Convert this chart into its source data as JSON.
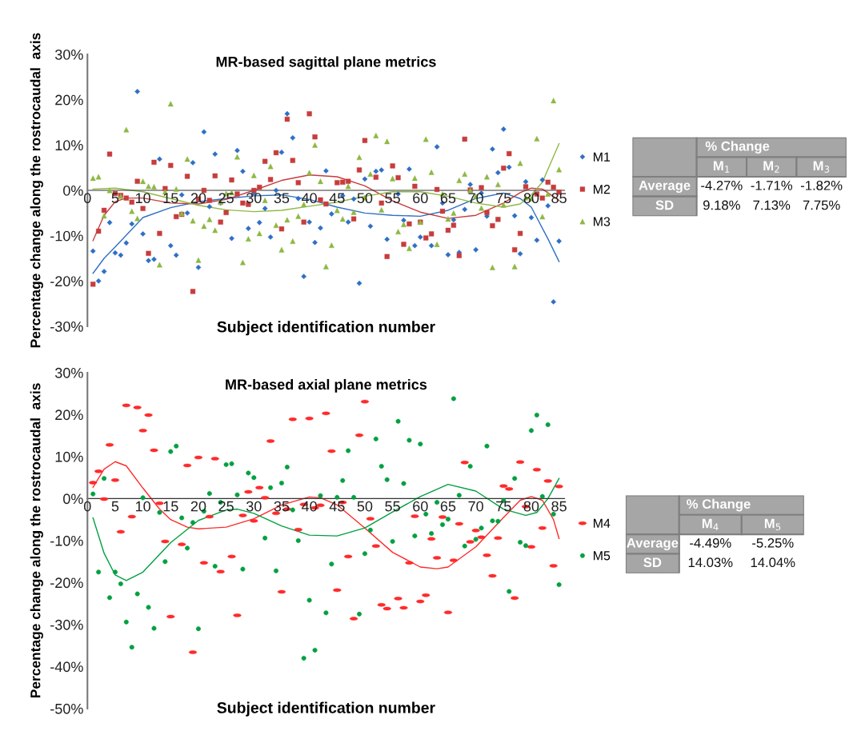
{
  "chart_data": [
    {
      "type": "scatter",
      "title": "MR-based sagittal plane metrics",
      "xlabel": "Subject identification number",
      "ylabel": "Percentage change along the rostrocaudal  axis",
      "xlim": [
        0,
        86
      ],
      "xticks": [
        0,
        5,
        10,
        15,
        20,
        25,
        30,
        35,
        40,
        45,
        50,
        55,
        60,
        65,
        70,
        75,
        80,
        85
      ],
      "ylim": [
        -30,
        30
      ],
      "yticks": [
        {
          "value": -30,
          "label": "-30%"
        },
        {
          "value": -20,
          "label": "-20%"
        },
        {
          "value": -10,
          "label": "-10%"
        },
        {
          "value": 0,
          "label": "0%"
        },
        {
          "value": 10,
          "label": "10%"
        },
        {
          "value": 20,
          "label": "20%"
        },
        {
          "value": 30,
          "label": "30%"
        }
      ],
      "grid": false,
      "legend": "right",
      "series": [
        {
          "name": "M1",
          "color": "#2e6fc4",
          "marker": "diamond",
          "x": [
            1,
            2,
            3,
            4,
            5,
            6,
            7,
            8,
            9,
            10,
            11,
            12,
            13,
            15,
            16,
            17,
            18,
            19,
            20,
            21,
            22,
            23,
            24,
            26,
            27,
            28,
            29,
            30,
            31,
            32,
            33,
            34,
            35,
            36,
            37,
            38,
            39,
            40,
            41,
            42,
            43,
            44,
            46,
            47,
            48,
            49,
            50,
            51,
            52,
            53,
            54,
            56,
            57,
            58,
            59,
            60,
            62,
            63,
            64,
            65,
            66,
            67,
            68,
            69,
            70,
            71,
            72,
            73,
            74,
            75,
            76,
            77,
            78,
            79,
            80,
            81,
            82,
            83,
            84,
            85
          ],
          "values": [
            -13.4,
            -20,
            -17.9,
            -7.1,
            -13.8,
            -14.3,
            -11.6,
            -7.4,
            21.8,
            -9.6,
            -15.5,
            -15.2,
            6.9,
            -12.2,
            -14.3,
            -1,
            -5,
            6.1,
            -17,
            12.9,
            -3.6,
            8,
            -2.8,
            -10.6,
            8.8,
            4.2,
            -8.4,
            -0.6,
            -7.1,
            -4,
            -10.3,
            0,
            8.4,
            16.9,
            11.6,
            -1.8,
            -19,
            -7,
            -11.5,
            -8.3,
            4.3,
            -5.2,
            -1.2,
            -7,
            -1.9,
            -20.5,
            2.5,
            -7.9,
            4.2,
            4.5,
            -10.8,
            -0.8,
            -6.6,
            4.7,
            -12.2,
            -10.3,
            -12.2,
            9.6,
            -2.8,
            -14.2,
            -6.5,
            -13.7,
            -4.2,
            1.3,
            -13.1,
            -0.6,
            -5.7,
            9.1,
            3.9,
            13.5,
            5.1,
            -5.6,
            -14,
            1.9,
            -6,
            -11,
            2.3,
            -3.4,
            -24.6,
            -11.2
          ]
        },
        {
          "name": "M2",
          "color": "#c83c3c",
          "marker": "square",
          "x": [
            1,
            2,
            3,
            4,
            5,
            6,
            7,
            8,
            9,
            10,
            11,
            12,
            13,
            14,
            15,
            16,
            17,
            18,
            19,
            20,
            21,
            22,
            23,
            24,
            25,
            26,
            27,
            28,
            29,
            30,
            31,
            32,
            33,
            34,
            35,
            36,
            37,
            38,
            39,
            40,
            41,
            42,
            43,
            45,
            46,
            47,
            48,
            49,
            50,
            52,
            53,
            54,
            55,
            56,
            57,
            58,
            59,
            60,
            61,
            62,
            63,
            64,
            65,
            66,
            67,
            68,
            69,
            71,
            72,
            73,
            74,
            75,
            76,
            77,
            78,
            79,
            81,
            82,
            83,
            84,
            85
          ],
          "values": [
            -20.7,
            -9,
            -4.4,
            8,
            -0.7,
            -1.1,
            -1.7,
            -2.6,
            2,
            -4,
            -13.9,
            6.2,
            -9.5,
            0.4,
            5.5,
            -5.8,
            -5.3,
            3.1,
            -22.3,
            -1.9,
            0,
            -2.2,
            3.2,
            -7,
            -4.9,
            2.3,
            -0.8,
            -2.8,
            -3.1,
            0,
            0.7,
            6.4,
            2.4,
            8.3,
            -8.5,
            15.7,
            6.6,
            1.7,
            -7,
            16.9,
            11.8,
            -2.1,
            -3,
            1.7,
            1.8,
            2,
            -6.3,
            4.5,
            11,
            2.9,
            -2.8,
            -14.6,
            5.4,
            2.8,
            -11.9,
            -7.4,
            0.9,
            -7,
            -10.5,
            -9.6,
            0.2,
            -4.6,
            -8.8,
            -7.7,
            -14.4,
            11.3,
            0.1,
            0.6,
            -4.9,
            -7.8,
            -6.4,
            4.9,
            8.1,
            -13.1,
            -9.5,
            0.8,
            -0.8,
            -1.7,
            1.8,
            0.7,
            -0.4
          ]
        },
        {
          "name": "M3",
          "color": "#8db843",
          "marker": "triangle",
          "x": [
            1,
            2,
            3,
            4,
            6,
            7,
            8,
            9,
            10,
            11,
            12,
            13,
            14,
            15,
            16,
            17,
            18,
            19,
            20,
            21,
            22,
            23,
            24,
            25,
            26,
            27,
            28,
            29,
            30,
            31,
            32,
            33,
            34,
            35,
            36,
            37,
            38,
            39,
            40,
            41,
            42,
            43,
            44,
            45,
            46,
            47,
            48,
            49,
            50,
            51,
            52,
            53,
            54,
            55,
            56,
            57,
            58,
            59,
            60,
            61,
            62,
            63,
            64,
            65,
            66,
            67,
            68,
            69,
            70,
            71,
            72,
            73,
            74,
            75,
            77,
            78,
            79,
            80,
            81,
            82,
            83,
            84,
            85
          ],
          "values": [
            2.7,
            3,
            -5.6,
            0,
            -1.3,
            13.4,
            -4.6,
            -6.2,
            2,
            0.9,
            0.8,
            -16.4,
            -0.3,
            19.1,
            0.3,
            -5.1,
            6.9,
            -6.7,
            -15.4,
            -7.9,
            -6.4,
            -8.8,
            -2.6,
            -0.7,
            -0.5,
            7.4,
            -15.9,
            -10.7,
            3.3,
            -9.5,
            -2.2,
            5.3,
            -7.7,
            -13.1,
            -6.5,
            -11.2,
            -5.7,
            -3.1,
            3.9,
            10,
            2,
            -16.8,
            -12.1,
            -4.4,
            -6.3,
            0.9,
            -4.8,
            7.3,
            -1.6,
            3.6,
            12.1,
            -4.3,
            10.8,
            2.6,
            -9.1,
            -7.5,
            -12.8,
            2.7,
            -7,
            11.3,
            4,
            -11.9,
            -0.8,
            -6.3,
            -5,
            2.2,
            3.6,
            0,
            -1.3,
            -3.9,
            3,
            -17,
            1.3,
            -3.2,
            -16.8,
            6,
            -1.6,
            -1.8,
            11.4,
            -5.8,
            -0.8,
            19.8,
            4.6
          ]
        },
        {
          "type": "line",
          "color": "#2e6fc4",
          "marker": "none",
          "x": [
            1,
            3,
            5,
            10,
            15,
            20,
            25,
            30,
            35,
            40,
            45,
            50,
            55,
            60,
            65,
            70,
            75,
            78,
            80,
            83,
            85
          ],
          "values": [
            -18.3,
            -15,
            -12.5,
            -6,
            -3.8,
            -2.5,
            -1.8,
            -1.2,
            -1,
            -2,
            -3.7,
            -5,
            -5.5,
            -5.7,
            -4.4,
            -1.8,
            -0.6,
            -1.8,
            -3.7,
            -10.7,
            -15.7
          ]
        },
        {
          "type": "line",
          "color": "#c83c3c",
          "marker": "none",
          "x": [
            1,
            3,
            5,
            7,
            10,
            15,
            20,
            25,
            30,
            35,
            40,
            45,
            50,
            55,
            60,
            65,
            70,
            75,
            78,
            80,
            82,
            85
          ],
          "values": [
            -11.1,
            -5.5,
            -2.5,
            -1.7,
            -1.7,
            -2.8,
            -3,
            -2,
            0,
            2.2,
            3.4,
            3,
            1,
            -2.3,
            -4.8,
            -6.2,
            -5.5,
            -2.8,
            -0.5,
            0.5,
            0.3,
            -2.2
          ]
        },
        {
          "type": "line",
          "color": "#8db843",
          "marker": "none",
          "x": [
            1,
            5,
            10,
            15,
            20,
            25,
            30,
            35,
            40,
            45,
            50,
            55,
            60,
            65,
            70,
            75,
            78,
            80,
            82,
            85
          ],
          "values": [
            0.3,
            0.5,
            -0.3,
            -1.8,
            -3.3,
            -4.3,
            -4.7,
            -4.4,
            -3.5,
            -2.6,
            -1.3,
            -0.3,
            -0.3,
            -1.3,
            -2.8,
            -3.7,
            -3,
            -1,
            1.8,
            10.3
          ]
        }
      ]
    },
    {
      "type": "other",
      "title": "% Change",
      "categories": [
        "M$_{1}$",
        "M$_{2}$",
        "M$_{3}$"
      ],
      "y_categories": [
        "Average",
        "SD"
      ],
      "cell_labels": [
        [
          "-4.27%",
          "-1.71%",
          "-1.82%"
        ],
        [
          "9.18%",
          "7.13%",
          "7.75%"
        ]
      ]
    },
    {
      "type": "scatter",
      "title": "MR-based axial plane metrics",
      "xlabel": "Subject identification number",
      "ylabel": "Percentage change along the rostrocaudal  axis",
      "xlim": [
        0,
        86
      ],
      "xticks": [
        0,
        5,
        10,
        15,
        20,
        25,
        30,
        35,
        40,
        45,
        50,
        55,
        60,
        65,
        70,
        75,
        80,
        85
      ],
      "ylim": [
        -50,
        30
      ],
      "yticks": [
        {
          "value": -50,
          "label": "-50%"
        },
        {
          "value": -40,
          "label": "-40%"
        },
        {
          "value": -30,
          "label": "-30%"
        },
        {
          "value": -20,
          "label": "-20%"
        },
        {
          "value": -10,
          "label": "-10%"
        },
        {
          "value": 0,
          "label": "0%"
        },
        {
          "value": 10,
          "label": "10%"
        },
        {
          "value": 20,
          "label": "20%"
        },
        {
          "value": 30,
          "label": "30%"
        }
      ],
      "grid": false,
      "legend": "right",
      "series": [
        {
          "name": "M4",
          "color": "#ff2a2a",
          "x": [
            1,
            2,
            3,
            4,
            5,
            6,
            7,
            8,
            9,
            10,
            11,
            12,
            13,
            14,
            15,
            17,
            18,
            19,
            20,
            21,
            22,
            23,
            24,
            26,
            27,
            28,
            29,
            30,
            31,
            32,
            33,
            34,
            35,
            36,
            37,
            38,
            39,
            40,
            41,
            42,
            43,
            44,
            45,
            46,
            47,
            48,
            49,
            50,
            51,
            52,
            53,
            54,
            56,
            57,
            58,
            59,
            60,
            61,
            62,
            63,
            64,
            65,
            66,
            67,
            68,
            69,
            70,
            71,
            72,
            73,
            74,
            75,
            76,
            77,
            78,
            79,
            80,
            81,
            82,
            83,
            84,
            85
          ],
          "values": [
            3.8,
            6.5,
            -0.1,
            12.8,
            4.4,
            -7.9,
            22.2,
            -4.3,
            21.7,
            16.2,
            19.9,
            11.5,
            -1.1,
            -10.2,
            -28.1,
            -10.9,
            7.9,
            -36.6,
            9.8,
            -15.3,
            -4.3,
            9.5,
            -17.4,
            -13.8,
            -27.8,
            -4,
            1.6,
            -5.3,
            2.6,
            0.2,
            13.7,
            -3.5,
            -22.2,
            -2.5,
            18.9,
            -7.4,
            -1.4,
            19.1,
            -2.2,
            -1.6,
            20.3,
            11.3,
            -21.8,
            -0.9,
            -13.8,
            -28.6,
            15.1,
            23.1,
            -4.8,
            -11.3,
            -25.3,
            -26.2,
            -23.8,
            -26,
            -15.3,
            -4.2,
            -24.5,
            -23,
            -9.6,
            -14.1,
            -4.4,
            -27.1,
            -14.7,
            -6,
            8.6,
            -10.3,
            -7.6,
            -9.2,
            -13.5,
            -18.4,
            -9.4,
            3,
            2.3,
            -23.7,
            8.7,
            -1.9,
            -11.5,
            6.9,
            -7,
            4.2,
            -16,
            2.9
          ]
        },
        {
          "name": "M5",
          "color": "#00a040",
          "marker": "circle",
          "x": [
            1,
            2,
            3,
            4,
            5,
            6,
            7,
            8,
            9,
            10,
            11,
            12,
            13,
            14,
            15,
            16,
            17,
            18,
            19,
            20,
            21,
            22,
            23,
            24,
            25,
            26,
            27,
            28,
            29,
            30,
            32,
            33,
            34,
            35,
            36,
            37,
            38,
            39,
            40,
            41,
            42,
            43,
            44,
            45,
            46,
            47,
            48,
            49,
            50,
            51,
            52,
            53,
            54,
            55,
            56,
            57,
            58,
            59,
            60,
            61,
            62,
            63,
            64,
            65,
            66,
            67,
            68,
            69,
            70,
            71,
            72,
            73,
            74,
            75,
            76,
            77,
            78,
            79,
            80,
            81,
            82,
            83,
            84,
            85
          ],
          "values": [
            1.1,
            -17.5,
            4.8,
            -23.6,
            -17.5,
            -20.3,
            -29.4,
            -35.4,
            -22.7,
            0.2,
            -25.9,
            -30.9,
            -3.3,
            -15,
            11.2,
            12.5,
            -4.6,
            -11.8,
            -5.7,
            -31,
            -3,
            1.2,
            -16.1,
            -0.9,
            8.1,
            8.3,
            0.9,
            -16.8,
            6.1,
            5,
            -9.4,
            2.6,
            -17.2,
            3.7,
            7.5,
            -2.7,
            -10,
            -38,
            -24.2,
            -36.1,
            0.7,
            -27.2,
            -15.6,
            0.3,
            4.3,
            11.4,
            0.3,
            -27.5,
            -13.1,
            -7.5,
            14.2,
            7.7,
            4.5,
            -10.2,
            18.4,
            3.6,
            13.9,
            -8.9,
            13,
            -3.7,
            -8.3,
            -0.9,
            -6.2,
            -4.9,
            23.8,
            0.8,
            -11.3,
            7.7,
            -9.7,
            -7,
            12.5,
            -5.3,
            -5.4,
            -0.5,
            -22.1,
            4.8,
            -10.4,
            -11.2,
            16.2,
            19.9,
            0.5,
            17.6,
            -3.7,
            -20.5
          ]
        },
        {
          "type": "line",
          "color": "#ff2a2a",
          "marker": "none",
          "x": [
            1,
            3,
            5,
            7,
            10,
            13,
            15,
            18,
            20,
            25,
            30,
            35,
            40,
            42,
            45,
            50,
            55,
            60,
            63,
            65,
            70,
            75,
            78,
            80,
            82,
            84,
            85
          ],
          "values": [
            2.7,
            7,
            8.8,
            7.8,
            2.5,
            -2.5,
            -5,
            -6.8,
            -7.2,
            -6.8,
            -4.8,
            -1.5,
            0.4,
            0.2,
            -1.5,
            -7,
            -12.8,
            -16.3,
            -16.7,
            -16.3,
            -11.5,
            -4.5,
            -0.4,
            0.5,
            -0.4,
            -5,
            -9.5
          ]
        },
        {
          "type": "line",
          "color": "#00a040",
          "marker": "none",
          "x": [
            1,
            3,
            5,
            7,
            10,
            15,
            20,
            25,
            27,
            30,
            35,
            40,
            45,
            50,
            55,
            60,
            65,
            70,
            75,
            79,
            81,
            83,
            85
          ],
          "values": [
            -4.6,
            -13,
            -18.2,
            -19.5,
            -17.5,
            -10.5,
            -5.2,
            -2.7,
            -2.5,
            -3.5,
            -6.5,
            -8.7,
            -8.9,
            -7,
            -3.2,
            0.5,
            3.4,
            1.8,
            -2.5,
            -4,
            -3.3,
            0,
            4.8
          ]
        }
      ]
    },
    {
      "type": "other",
      "title": "% Change",
      "categories": [
        "M$_{4}$",
        "M$_{5}$"
      ],
      "y_categories": [
        "Average",
        "SD"
      ],
      "cell_labels": [
        [
          "-4.49%",
          "-5.25%"
        ],
        [
          "14.03%",
          "14.04%"
        ]
      ]
    }
  ]
}
